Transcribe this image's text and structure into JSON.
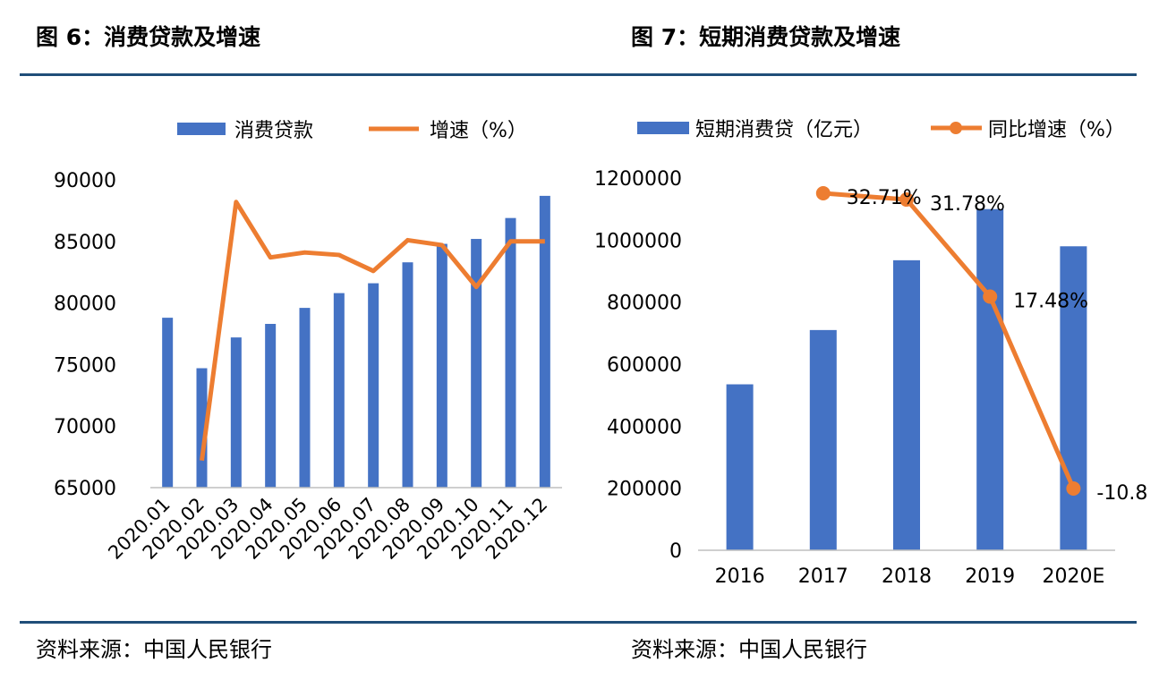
{
  "colors": {
    "bar": "#4472c4",
    "line": "#ed7d31",
    "rule": "#1f4e79",
    "axis": "#bfbfbf"
  },
  "titles": {
    "left": "图 6：消费贷款及增速",
    "right": "图 7：短期消费贷款及增速"
  },
  "sources": {
    "left": "资料来源：中国人民银行",
    "right": "资料来源：中国人民银行"
  },
  "chart_data": [
    {
      "type": "bar",
      "categories": [
        "2020.01",
        "2020.02",
        "2020.03",
        "2020.04",
        "2020.05",
        "2020.06",
        "2020.07",
        "2020.08",
        "2020.09",
        "2020.10",
        "2020.11",
        "2020.12"
      ],
      "ylim": [
        65000,
        90000
      ],
      "yticks": [
        "90000",
        "85000",
        "80000",
        "75000",
        "70000",
        "65000"
      ],
      "grid": false,
      "legend_position": "top",
      "series": [
        {
          "name": "消费贷款",
          "type": "bar",
          "values": [
            78800,
            74700,
            77200,
            78300,
            79600,
            80800,
            81600,
            83300,
            84800,
            85200,
            86900,
            88700
          ]
        },
        {
          "name": "增速（%）",
          "type": "line",
          "values": [
            null,
            67200,
            88200,
            83700,
            84100,
            83900,
            82600,
            85100,
            84700,
            81300,
            85000,
            85000
          ]
        }
      ]
    },
    {
      "type": "bar",
      "categories": [
        "2016",
        "2017",
        "2018",
        "2019",
        "2020E"
      ],
      "ylim": [
        0,
        1200000
      ],
      "yticks": [
        "1200000",
        "1000000",
        "800000",
        "600000",
        "400000",
        "200000",
        "0"
      ],
      "grid": false,
      "legend_position": "top",
      "series": [
        {
          "name": "短期消费贷（亿元）",
          "type": "bar",
          "values": [
            535000,
            710000,
            935000,
            1100000,
            980000
          ]
        },
        {
          "name": "同比增速（%）",
          "type": "line",
          "values": [
            null,
            32.71,
            31.78,
            17.48,
            -10.8
          ]
        }
      ],
      "line_axis": [
        -10.8,
        32.71
      ],
      "data_labels": [
        "",
        "32.71%",
        "31.78%",
        "17.48%",
        "-10.80"
      ]
    }
  ]
}
